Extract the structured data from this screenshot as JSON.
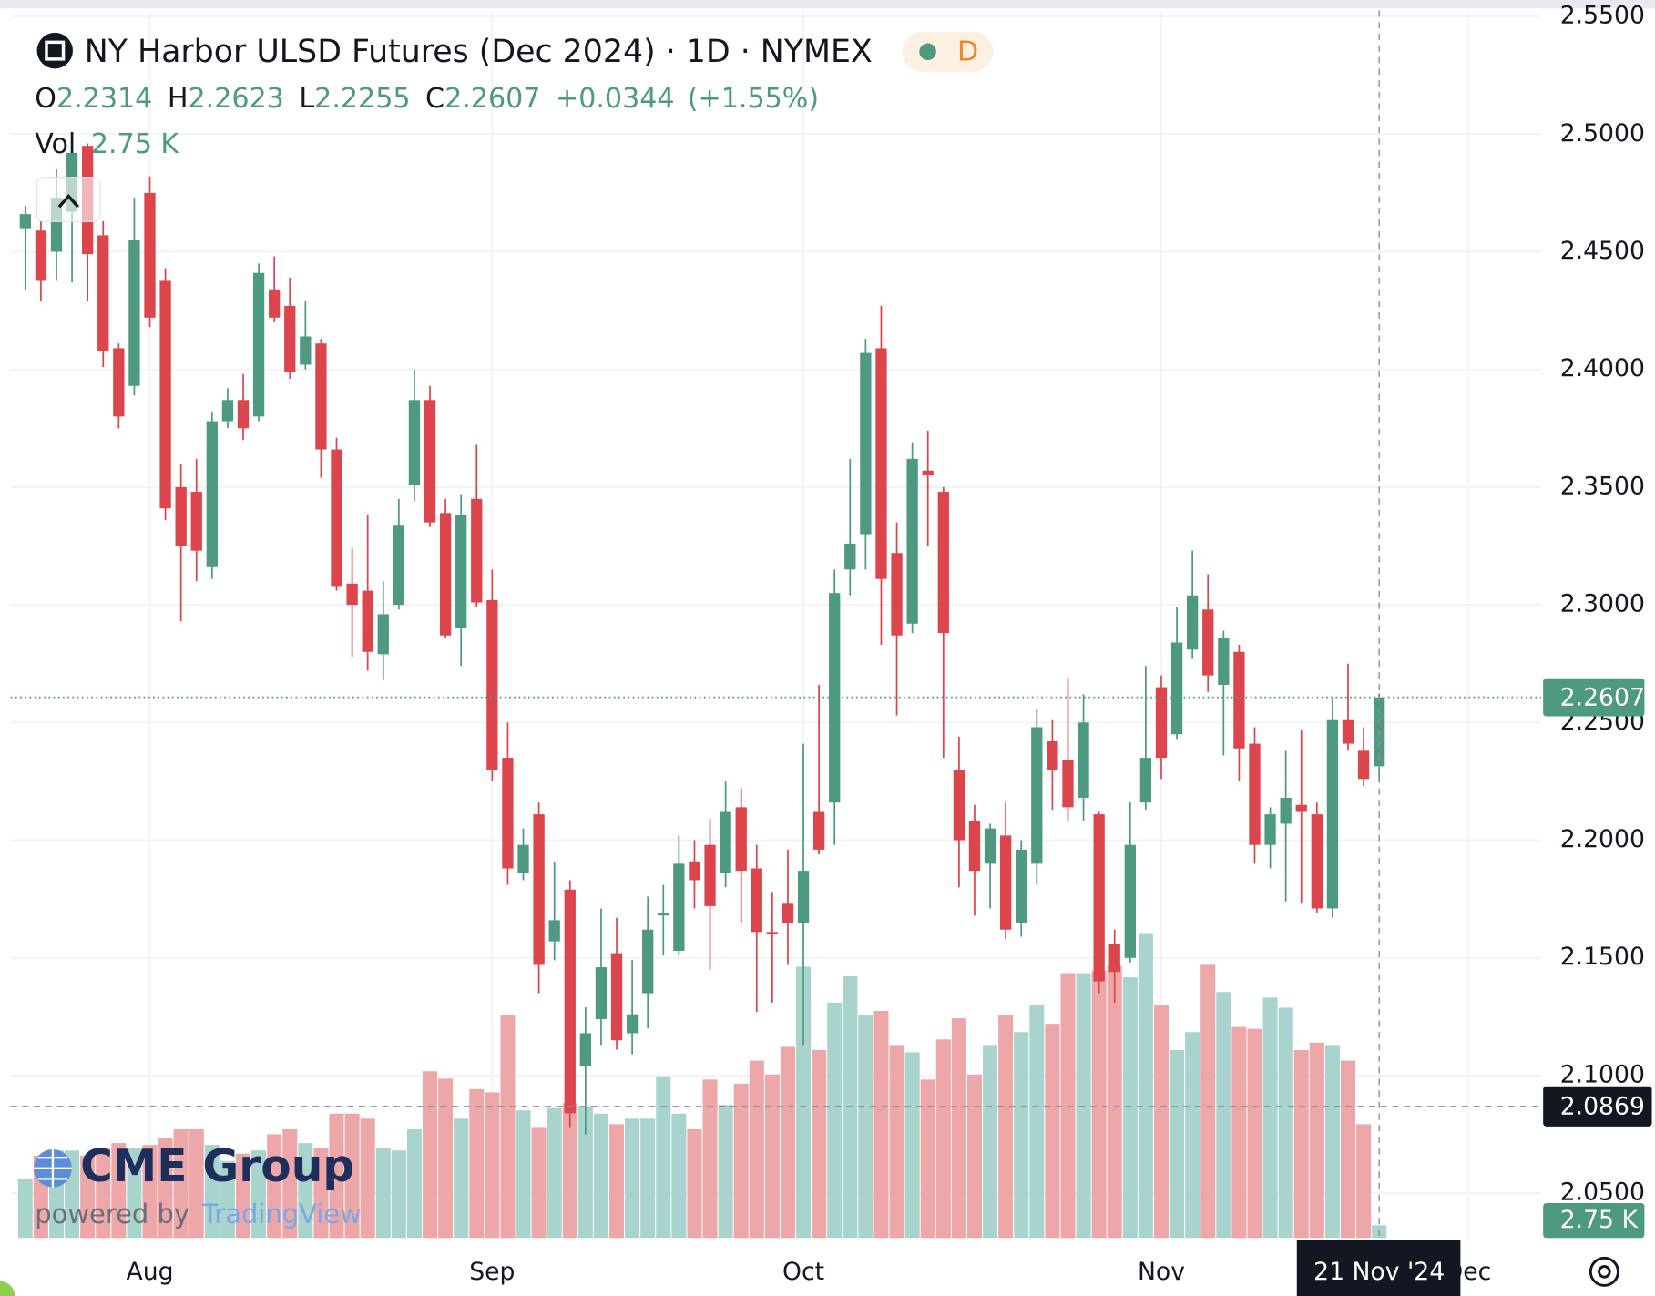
{
  "header": {
    "title": "NY Harbor ULSD Futures (Dec 2024) · 1D · NYMEX",
    "badge": "D",
    "ohlc": [
      {
        "key": "O",
        "value": "2.2314"
      },
      {
        "key": "H",
        "value": "2.2623"
      },
      {
        "key": "L",
        "value": "2.2255"
      },
      {
        "key": "C",
        "value": "2.2607"
      }
    ],
    "change": "+0.0344",
    "change_pct": "(+1.55%)",
    "volume_key": "Vol",
    "volume_value": "2.75 K"
  },
  "logo": {
    "brand": "CME Group",
    "powered": "powered by",
    "platform": "TradingView"
  },
  "chart_data": {
    "type": "candlestick",
    "categories": [
      null,
      null,
      null,
      null,
      null,
      null,
      null,
      null,
      null,
      null,
      null,
      null,
      null,
      null,
      null,
      null,
      null,
      null,
      null,
      null,
      null,
      null,
      null,
      null,
      null,
      null,
      null,
      null,
      null,
      null,
      null,
      null,
      null,
      null,
      null,
      null,
      null,
      null,
      null,
      null,
      null,
      null,
      null,
      null,
      null,
      null,
      null,
      null,
      null,
      null,
      null,
      null,
      null,
      null,
      null,
      null,
      null,
      null,
      null,
      null,
      null,
      null,
      null,
      null,
      null,
      null,
      null,
      null,
      null,
      null,
      null,
      null,
      null,
      null,
      null,
      null,
      null,
      null,
      null,
      null,
      null,
      null,
      null,
      null,
      null,
      null,
      null,
      null
    ],
    "open": [
      2.46,
      2.459,
      2.45,
      2.467,
      2.495,
      2.457,
      2.409,
      2.393,
      2.475,
      2.438,
      2.35,
      2.348,
      2.316,
      2.378,
      2.387,
      2.38,
      2.434,
      2.427,
      2.402,
      2.411,
      2.366,
      2.309,
      2.306,
      2.279,
      2.3,
      2.351,
      2.387,
      2.339,
      2.29,
      2.345,
      2.302,
      2.235,
      2.186,
      2.211,
      2.157,
      2.179,
      2.104,
      2.124,
      2.152,
      2.118,
      2.135,
      2.168,
      2.153,
      2.191,
      2.198,
      2.186,
      2.214,
      2.188,
      2.161,
      2.173,
      2.165,
      2.212,
      2.216,
      2.315,
      2.33,
      2.409,
      2.322,
      2.292,
      2.357,
      2.348,
      2.23,
      2.208,
      2.19,
      2.202,
      2.165,
      2.19,
      2.242,
      2.234,
      2.218,
      2.211,
      2.156,
      2.15,
      2.216,
      2.265,
      2.245,
      2.281,
      2.298,
      2.266,
      2.28,
      2.241,
      2.198,
      2.207,
      2.215,
      2.211,
      2.171,
      2.251,
      2.238,
      2.2314
    ],
    "high": [
      2.4695,
      2.463,
      2.485,
      2.498,
      2.496,
      2.463,
      2.411,
      2.473,
      2.482,
      2.443,
      2.36,
      2.362,
      2.382,
      2.392,
      2.398,
      2.445,
      2.448,
      2.439,
      2.429,
      2.413,
      2.371,
      2.324,
      2.338,
      2.31,
      2.345,
      2.4,
      2.393,
      2.345,
      2.347,
      2.368,
      2.315,
      2.25,
      2.205,
      2.216,
      2.191,
      2.183,
      2.129,
      2.171,
      2.167,
      2.149,
      2.176,
      2.181,
      2.202,
      2.2,
      2.209,
      2.225,
      2.222,
      2.198,
      2.178,
      2.196,
      2.241,
      2.266,
      2.315,
      2.362,
      2.413,
      2.427,
      2.335,
      2.369,
      2.374,
      2.35,
      2.244,
      2.215,
      2.207,
      2.216,
      2.2,
      2.256,
      2.251,
      2.269,
      2.262,
      2.212,
      2.162,
      2.216,
      2.274,
      2.27,
      2.299,
      2.323,
      2.313,
      2.289,
      2.283,
      2.248,
      2.214,
      2.238,
      2.247,
      2.216,
      2.26,
      2.275,
      2.248,
      2.2623
    ],
    "low": [
      2.434,
      2.429,
      2.438,
      2.437,
      2.429,
      2.401,
      2.375,
      2.389,
      2.418,
      2.336,
      2.293,
      2.31,
      2.311,
      2.375,
      2.37,
      2.378,
      2.42,
      2.396,
      2.4,
      2.354,
      2.306,
      2.278,
      2.272,
      2.268,
      2.298,
      2.344,
      2.333,
      2.286,
      2.274,
      2.299,
      2.225,
      2.181,
      2.183,
      2.135,
      2.149,
      2.078,
      2.075,
      2.113,
      2.111,
      2.109,
      2.12,
      2.151,
      2.151,
      2.171,
      2.145,
      2.18,
      2.165,
      2.127,
      2.131,
      2.147,
      2.113,
      2.194,
      2.198,
      2.304,
      2.315,
      2.283,
      2.253,
      2.288,
      2.325,
      2.235,
      2.18,
      2.168,
      2.171,
      2.158,
      2.159,
      2.181,
      2.213,
      2.208,
      2.208,
      2.135,
      2.131,
      2.148,
      2.213,
      2.226,
      2.243,
      2.277,
      2.263,
      2.236,
      2.225,
      2.19,
      2.188,
      2.174,
      2.173,
      2.169,
      2.167,
      2.238,
      2.223,
      2.2255
    ],
    "close": [
      2.466,
      2.438,
      2.473,
      2.492,
      2.449,
      2.408,
      2.38,
      2.455,
      2.422,
      2.341,
      2.325,
      2.323,
      2.378,
      2.387,
      2.375,
      2.441,
      2.422,
      2.399,
      2.414,
      2.366,
      2.308,
      2.3,
      2.28,
      2.296,
      2.334,
      2.387,
      2.335,
      2.287,
      2.338,
      2.301,
      2.23,
      2.188,
      2.198,
      2.147,
      2.166,
      2.084,
      2.118,
      2.146,
      2.115,
      2.126,
      2.162,
      2.169,
      2.19,
      2.183,
      2.172,
      2.212,
      2.187,
      2.161,
      2.16,
      2.165,
      2.187,
      2.196,
      2.305,
      2.326,
      2.407,
      2.311,
      2.287,
      2.362,
      2.355,
      2.288,
      2.2,
      2.187,
      2.205,
      2.162,
      2.196,
      2.248,
      2.23,
      2.214,
      2.25,
      2.14,
      2.144,
      2.198,
      2.235,
      2.235,
      2.284,
      2.304,
      2.27,
      2.286,
      2.239,
      2.198,
      2.211,
      2.218,
      2.212,
      2.171,
      2.251,
      2.241,
      2.226,
      2.2607
    ],
    "volume": [
      12.8,
      17.9,
      19.0,
      19.0,
      17.9,
      19.5,
      20.6,
      19.5,
      20.2,
      21.8,
      23.6,
      23.6,
      20.2,
      16.7,
      18.3,
      19.0,
      22.5,
      23.6,
      20.6,
      19.5,
      27.0,
      27.0,
      25.9,
      19.5,
      19.0,
      23.6,
      36.2,
      34.6,
      25.9,
      32.3,
      31.6,
      48.3,
      27.7,
      24.1,
      28.2,
      29.3,
      28.6,
      27.0,
      24.7,
      25.9,
      25.9,
      35.1,
      27.0,
      23.6,
      34.4,
      28.9,
      33.5,
      38.5,
      35.5,
      41.5,
      58.9,
      40.8,
      51.1,
      56.8,
      48.3,
      49.3,
      41.9,
      40.3,
      34.4,
      43.1,
      47.7,
      35.5,
      41.9,
      48.3,
      44.7,
      50.6,
      46.5,
      57.5,
      57.5,
      58.0,
      59.1,
      56.6,
      66.2,
      50.6,
      40.8,
      44.7,
      59.3,
      53.4,
      45.8,
      45.4,
      52.2,
      50.0,
      40.8,
      42.4,
      41.9,
      38.5,
      24.7,
      2.75
    ],
    "up_color": "#4e9a80",
    "down_color": "#dc454c",
    "volume_up_color": "#a9d4cd",
    "volume_down_color": "#eda7a9",
    "ylim": [
      2.031,
      2.5525
    ],
    "yticks": [
      {
        "value": 2.05,
        "label": "2.0500"
      },
      {
        "value": 2.1,
        "label": "2.1000"
      },
      {
        "value": 2.15,
        "label": "2.1500"
      },
      {
        "value": 2.2,
        "label": "2.2000"
      },
      {
        "value": 2.25,
        "label": "2.2500"
      },
      {
        "value": 2.3,
        "label": "2.3000"
      },
      {
        "value": 2.35,
        "label": "2.3500"
      },
      {
        "value": 2.4,
        "label": "2.4000"
      },
      {
        "value": 2.45,
        "label": "2.4500"
      },
      {
        "value": 2.5,
        "label": "2.5000"
      },
      {
        "value": 2.55,
        "label": "2.5500"
      }
    ],
    "xlim": [
      -0.95,
      97.4
    ],
    "xticks": [
      {
        "value": 8,
        "label": "Aug"
      },
      {
        "value": 30,
        "label": "Sep"
      },
      {
        "value": 50,
        "label": "Oct"
      },
      {
        "value": 73,
        "label": "Nov"
      },
      {
        "value": 92.7,
        "label": "Dec"
      }
    ],
    "volume_lim": [
      0,
      266.5
    ],
    "last_price": 2.2607,
    "crosshair": {
      "index": 87,
      "price": 2.0869,
      "date": "21 Nov '24"
    },
    "grid": true
  }
}
